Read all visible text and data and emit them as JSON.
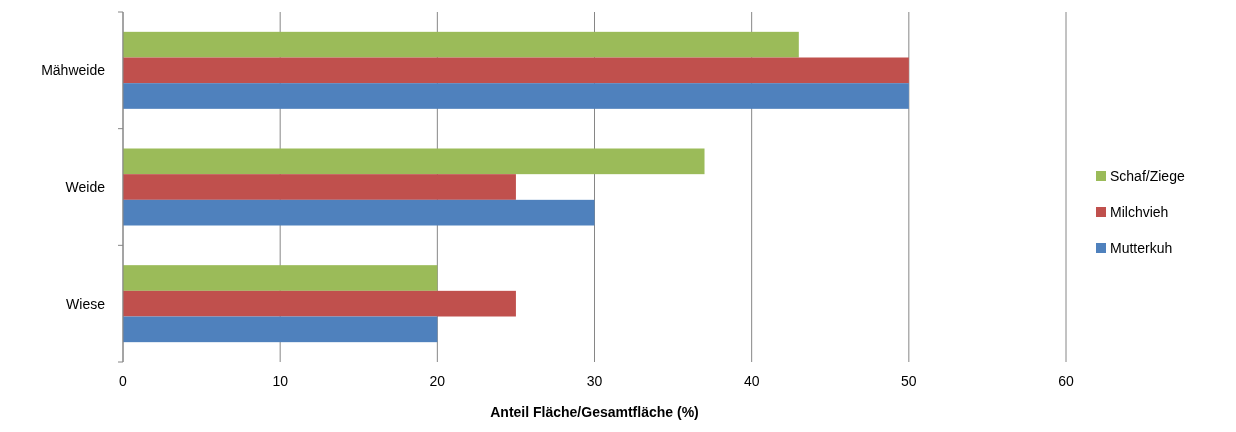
{
  "chart_data": {
    "type": "bar",
    "orientation": "horizontal",
    "xlabel": "Anteil Fläche/Gesamtfläche (%)",
    "categories": [
      "Mähweide",
      "Weide",
      "Wiese"
    ],
    "series": [
      {
        "name": "Schaf/Ziege",
        "color": "#9bbb59",
        "values": [
          43,
          37,
          20
        ]
      },
      {
        "name": "Milchvieh",
        "color": "#c0504d",
        "values": [
          50,
          25,
          25
        ]
      },
      {
        "name": "Mutterkuh",
        "color": "#4f81bd",
        "values": [
          50,
          30,
          20
        ]
      }
    ],
    "xlim": [
      0,
      60
    ],
    "xticks": [
      0,
      10,
      20,
      30,
      40,
      50,
      60
    ],
    "grid": "x",
    "legend": "right"
  }
}
